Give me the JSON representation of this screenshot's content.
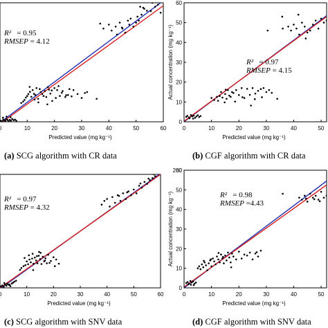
{
  "colors": {
    "fit_blue": "#1f2fb0",
    "fit_red": "#d61f1f",
    "points": "#000000"
  },
  "captions": [
    {
      "letter": "(a)",
      "text": "SCG algorithm with CR data"
    },
    {
      "letter": "(b)",
      "text": "CGF algorithm with CR data"
    },
    {
      "letter": "(c)",
      "text": "SCG algorithm with SNV data"
    },
    {
      "letter": "(d)",
      "text": "CGF algorithm with SNV data"
    }
  ],
  "stats": [
    {
      "r2_label": "R²",
      "r2_value": "= 0.95",
      "rmsep_label": "RMSEP",
      "rmsep_value": "= 4.12"
    },
    {
      "r2_label": "R²",
      "r2_value": "= 0.97",
      "rmsep_label": "RMSEP",
      "rmsep_value": "= 4.15"
    },
    {
      "r2_label": "R²",
      "r2_value": "= 0.97",
      "rmsep_label": "RMSEP",
      "rmsep_value": "= 4.32"
    },
    {
      "r2_label": "R²",
      "r2_value": "= 0.98",
      "rmsep_label": "RMSEP",
      "rmsep_value": "=4.43"
    }
  ],
  "chart_data": [
    {
      "type": "scatter",
      "xlabel": "Predicted value (mg kg⁻¹)",
      "ylabel": "",
      "xlim": [
        0,
        60
      ],
      "ylim": [
        0,
        60
      ],
      "xticks": [
        "0",
        "10",
        "20",
        "30",
        "40",
        "50",
        "60"
      ],
      "yticks": [],
      "fit_lines": [
        {
          "color": "blue",
          "x": [
            0,
            60
          ],
          "y": [
            -0.4,
            61
          ]
        },
        {
          "color": "red",
          "x": [
            0,
            60
          ],
          "y": [
            -1,
            58.5
          ]
        }
      ],
      "x": [
        0.3,
        0.8,
        1.2,
        1.5,
        2,
        2.3,
        2.8,
        3.2,
        3.6,
        4,
        4.5,
        5,
        5.5,
        6,
        2.4,
        1.1,
        3.9,
        7.8,
        8.5,
        9,
        9.5,
        10,
        10.4,
        11,
        11.5,
        12,
        12.5,
        13,
        13.4,
        14,
        14.6,
        15,
        15.5,
        16,
        16.5,
        17,
        17.6,
        18,
        18.5,
        19,
        20,
        20.5,
        21,
        22,
        23,
        24,
        25,
        27,
        28.5,
        30,
        32,
        21.5,
        19.2,
        14.1,
        17.4,
        25.5,
        26.3,
        31.2,
        10.9,
        12.7,
        22.7,
        24.3,
        35.5,
        38,
        40,
        41,
        42.5,
        43,
        44,
        45,
        46,
        47,
        47.5,
        48,
        49,
        50,
        50.5,
        51,
        51.5,
        52,
        53,
        54,
        55,
        56,
        57,
        58,
        59,
        49.5,
        52.6,
        55.4,
        36.8,
        44.8
      ],
      "y": [
        0.5,
        0.2,
        1.1,
        0.7,
        0.4,
        1.3,
        0.9,
        0.3,
        1.0,
        0.6,
        1.4,
        0.8,
        1.1,
        0.5,
        2.6,
        2.1,
        2.3,
        9.5,
        10.2,
        11,
        12.2,
        13,
        14,
        15.1,
        12.6,
        16,
        14.1,
        13.5,
        17,
        11.6,
        16.5,
        15,
        14,
        13,
        15.5,
        12.5,
        17.5,
        16.2,
        14.2,
        15.8,
        17,
        12,
        16,
        13,
        15.5,
        12.5,
        13.5,
        16,
        14,
        12,
        15,
        18,
        10.5,
        9.8,
        8.8,
        16.5,
        12.8,
        14.5,
        17.6,
        11.2,
        14.6,
        13.4,
        11.6,
        47,
        49,
        46,
        48,
        44,
        50,
        47,
        45,
        51,
        49,
        52,
        48,
        50,
        53,
        51,
        58,
        54,
        57,
        56,
        61,
        60,
        58,
        59,
        55,
        60.5,
        57.5,
        55.8,
        49.5,
        47.5
      ]
    },
    {
      "type": "scatter",
      "xlabel": "Predicted value (mg kg⁻¹)",
      "ylabel": "Actual concentration (mg kg⁻¹)",
      "xlim": [
        0,
        52
      ],
      "ylim": [
        0,
        60
      ],
      "xticks": [
        "0",
        "10",
        "20",
        "30",
        "40",
        "50"
      ],
      "yticks": [
        "0",
        "10",
        "20",
        "30",
        "40",
        "50",
        "60"
      ],
      "fit_lines": [
        {
          "color": "blue",
          "x": [
            0,
            52
          ],
          "y": [
            0,
            53.5
          ]
        },
        {
          "color": "red",
          "x": [
            0,
            52
          ],
          "y": [
            0.3,
            53
          ]
        }
      ],
      "x": [
        0.8,
        1.2,
        1.8,
        2.5,
        3,
        3.5,
        4,
        4.5,
        5,
        5.5,
        6,
        2,
        3.3,
        10,
        11,
        12,
        13,
        13.5,
        14,
        15,
        15.5,
        16,
        16.5,
        17,
        17.5,
        18,
        19,
        20,
        21,
        22,
        23,
        24,
        25,
        26,
        27,
        28,
        29,
        30,
        31,
        32,
        12.4,
        14.8,
        18.6,
        21.3,
        25.8,
        34,
        15.2,
        24.4,
        28.4,
        36,
        38,
        39,
        40,
        41,
        42,
        43,
        44,
        45,
        46,
        47,
        48,
        49,
        50,
        51,
        52,
        30.5,
        35.8,
        41.7,
        44.4
      ],
      "y": [
        2.5,
        3,
        2.2,
        3.4,
        2.8,
        3.1,
        2,
        2.7,
        3.3,
        2.4,
        2.9,
        1.8,
        1.6,
        12,
        11,
        12.6,
        13,
        15,
        12.2,
        14,
        11.6,
        16,
        13.2,
        12.6,
        15,
        14.5,
        16,
        13.5,
        17,
        12,
        16.6,
        13.6,
        17,
        14.2,
        15.6,
        16.5,
        17,
        15,
        16,
        14.6,
        10.6,
        9.8,
        10.2,
        12.4,
        11.4,
        11.6,
        16.2,
        8.2,
        12.4,
        47,
        48,
        46,
        49,
        47,
        44,
        50,
        48,
        45,
        46,
        49,
        51,
        47,
        52,
        50,
        51,
        46,
        53,
        54,
        42
      ],
      "extra_points_note": ""
    },
    {
      "type": "scatter",
      "xlabel": "Predicted value (mg kg⁻¹)",
      "ylabel": "",
      "xlim": [
        0,
        60
      ],
      "ylim": [
        0,
        60
      ],
      "xticks": [
        "0",
        "10",
        "20",
        "30",
        "40",
        "50",
        "60"
      ],
      "yticks": [],
      "fit_lines": [
        {
          "color": "blue",
          "x": [
            0,
            60
          ],
          "y": [
            -0.5,
            60.5
          ]
        },
        {
          "color": "red",
          "x": [
            0,
            60
          ],
          "y": [
            0,
            60
          ]
        }
      ],
      "x": [
        0.4,
        0.9,
        1.4,
        1.9,
        2.4,
        2.9,
        3.4,
        3.9,
        4.4,
        1.6,
        2.6,
        3.6,
        4.9,
        5.4,
        6,
        7.5,
        8,
        8.8,
        9.5,
        10,
        10.5,
        11,
        11.5,
        12,
        12.5,
        13,
        13.5,
        14,
        14.5,
        15,
        15.5,
        16,
        16.5,
        17,
        17.5,
        18,
        19,
        20,
        21,
        22,
        9.2,
        10.8,
        12.2,
        13.8,
        15.2,
        16.8,
        18.5,
        20.5,
        12.4,
        14.6,
        38,
        39,
        40,
        41,
        42,
        43,
        44,
        45,
        46,
        47,
        48,
        49,
        50,
        51,
        52,
        53,
        54,
        55,
        56,
        57,
        58,
        44.5,
        47.5,
        52.5,
        55.5,
        57.5
      ],
      "y": [
        0.8,
        1.3,
        0.6,
        1.8,
        1.1,
        2,
        1.5,
        0.9,
        2.3,
        2.6,
        2.1,
        1.7,
        2.8,
        3.3,
        3.8,
        9.5,
        10.5,
        11.5,
        12,
        14,
        12.5,
        15,
        13.5,
        15.5,
        12.8,
        16,
        14.5,
        13,
        17,
        15.2,
        12.6,
        16.5,
        14.1,
        15.6,
        13,
        17.5,
        14.2,
        16.2,
        15,
        12.8,
        15.8,
        17.2,
        18,
        16.8,
        18.5,
        14.4,
        13.2,
        11.5,
        9.4,
        19,
        44,
        46,
        47,
        43,
        48,
        45,
        49,
        46,
        50,
        47,
        51,
        49,
        52,
        50,
        54,
        53,
        56,
        55,
        57,
        58,
        59,
        48.6,
        50.5,
        55.2,
        57.8,
        60
      ],
      "extra_points_note": ""
    },
    {
      "type": "scatter",
      "xlabel": "Predicted value (mg kg⁻¹)",
      "ylabel": "Actual concentration (mg kg⁻¹)",
      "xlim": [
        0,
        52
      ],
      "ylim": [
        0,
        200
      ],
      "xticks": [
        "0",
        "10",
        "20",
        "30",
        "40",
        "50"
      ],
      "yticks": [
        "0",
        "10",
        "20",
        "30",
        "40",
        "50",
        "60"
      ],
      "fit_lines": [
        {
          "color": "blue",
          "x": [
            0,
            52
          ],
          "y": [
            0,
            54.5
          ]
        },
        {
          "color": "red",
          "x": [
            0,
            52
          ],
          "y": [
            0.5,
            52.5
          ]
        }
      ],
      "x": [
        0.8,
        1.3,
        1.8,
        2.3,
        2.8,
        3.3,
        3.8,
        4.3,
        1.5,
        2.5,
        3.5,
        5,
        5.5,
        6,
        6.5,
        7,
        7.5,
        8,
        8.5,
        9,
        9.5,
        10,
        10.5,
        11,
        11.5,
        12,
        12.5,
        13,
        13.5,
        14,
        14.5,
        15,
        15.5,
        16,
        16.5,
        17,
        17.5,
        18,
        19,
        20,
        21,
        22,
        23,
        24,
        25,
        26,
        27,
        28,
        7.2,
        9.8,
        12.6,
        14.2,
        17.2,
        26.5,
        36,
        42,
        43,
        44,
        45,
        46,
        47,
        48,
        49,
        50,
        51,
        52,
        44.5,
        47.5,
        49.5
      ],
      "y": [
        2.5,
        3,
        2.2,
        3.5,
        2.8,
        3.3,
        2.1,
        2.7,
        1.8,
        1.6,
        1.4,
        10,
        11,
        9.5,
        12,
        10.5,
        13,
        11.5,
        9,
        12.5,
        14,
        11,
        15,
        13.5,
        12,
        16,
        14.5,
        13,
        17,
        15,
        12.5,
        16.5,
        14,
        18,
        15.5,
        13,
        17.5,
        16,
        14.5,
        18.5,
        15,
        17,
        16.5,
        18,
        14.5,
        17.5,
        16,
        19,
        13.8,
        14.6,
        17.8,
        15.8,
        10.5,
        18.2,
        48,
        46,
        45,
        47,
        44,
        48,
        46,
        47,
        45,
        49,
        46,
        47,
        45.5,
        45.2,
        44.2
      ],
      "extra_points_note": ""
    }
  ]
}
